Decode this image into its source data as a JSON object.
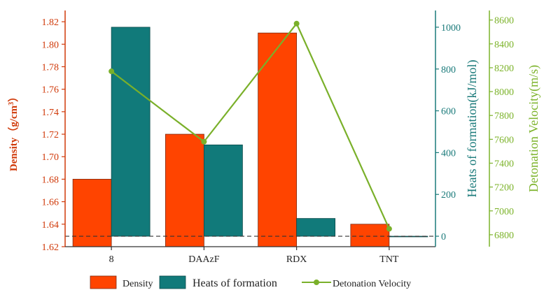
{
  "chart_data": {
    "type": "bar",
    "categories": [
      "8",
      "DAAzF",
      "RDX",
      "TNT"
    ],
    "series": [
      {
        "name": "Density",
        "axis": "left",
        "unit": "g/cm³",
        "values": [
          1.68,
          1.72,
          1.81,
          1.64
        ],
        "color": "#ff4400"
      },
      {
        "name": "Heats of formation",
        "axis": "middle",
        "unit": "kJ/mol",
        "values": [
          1000,
          437,
          85,
          -3
        ],
        "color": "#117a7a"
      },
      {
        "name": "Detonation Velocity",
        "axis": "right",
        "type": "line",
        "unit": "m/s",
        "values": [
          8170,
          7580,
          8570,
          6850
        ],
        "color": "#7ab02a"
      }
    ],
    "axes": {
      "left": {
        "label_main": "Density",
        "label_unit": "（g/cm",
        "label_sup": "3",
        "label_close": "）",
        "ylim": [
          1.62,
          1.83
        ],
        "ticks": [
          "1.62",
          "1.64",
          "1.66",
          "1.68",
          "1.70",
          "1.72",
          "1.74",
          "1.76",
          "1.78",
          "1.80",
          "1.82"
        ],
        "color": "#d03a0a"
      },
      "middle": {
        "label": "Heats of formation(kJ/mol)",
        "ylim": [
          -50,
          1080
        ],
        "ticks": [
          "0",
          "200",
          "400",
          "600",
          "800",
          "1000"
        ],
        "color": "#1a7a7a"
      },
      "right": {
        "label": "Detonation Velocity(m/s)",
        "ylim": [
          6700,
          8680
        ],
        "ticks": [
          "6800",
          "7000",
          "7200",
          "7400",
          "7600",
          "7800",
          "8000",
          "8200",
          "8400",
          "8600"
        ],
        "color": "#7cb32a"
      }
    },
    "reference_line": {
      "style": "dashed",
      "at_middle_axis_value": 0,
      "color": "#333333"
    },
    "legend": {
      "placement": "bottom",
      "items": [
        "Density",
        "Heats of formation",
        "Detonation Velocity"
      ]
    },
    "grid": false
  }
}
